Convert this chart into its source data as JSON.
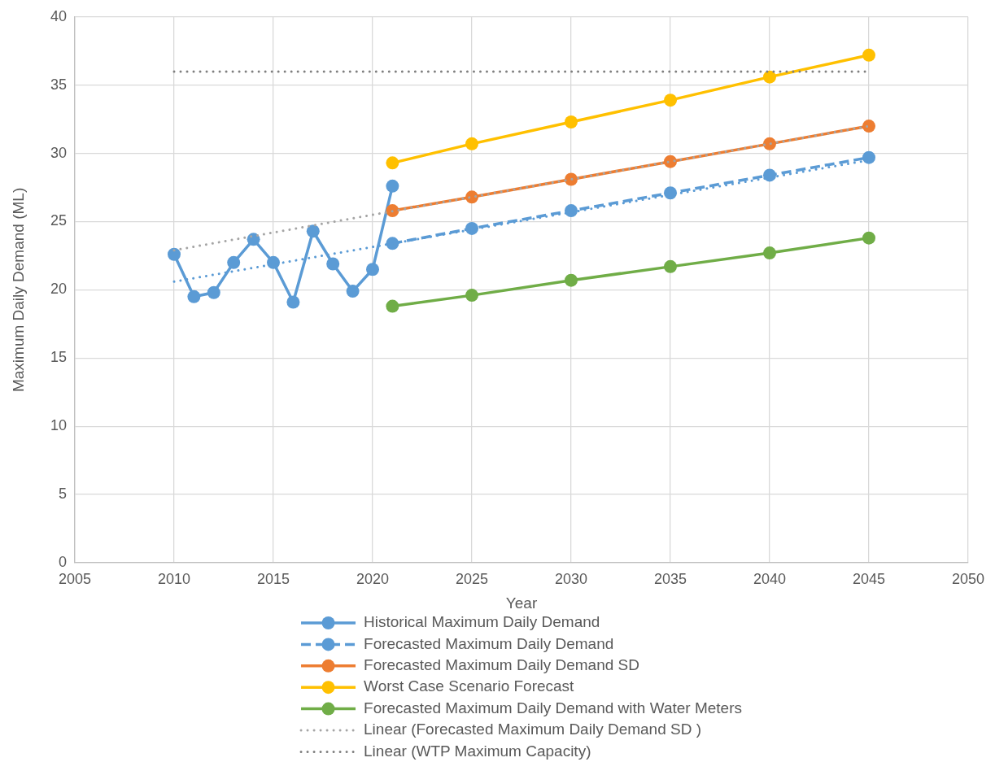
{
  "chart_data": {
    "type": "line",
    "xlabel": "Year",
    "ylabel": "Maximum Daily Demand (ML)",
    "xlim": [
      2005,
      2050
    ],
    "xticks": [
      2005,
      2010,
      2015,
      2020,
      2025,
      2030,
      2035,
      2040,
      2045,
      2050
    ],
    "ylim": [
      0,
      40
    ],
    "yticks": [
      0,
      5,
      10,
      15,
      20,
      25,
      30,
      35,
      40
    ],
    "grid": true,
    "legend": "bottom",
    "marker": "circle",
    "line_style": "solid",
    "series": [
      {
        "name": "Historical Maximum Daily Demand",
        "color": "#5b9bd5",
        "x": [
          2010,
          2011,
          2012,
          2013,
          2014,
          2015,
          2016,
          2017,
          2018,
          2019,
          2020,
          2021
        ],
        "values": [
          22.6,
          19.5,
          19.8,
          22.0,
          23.7,
          22.0,
          19.1,
          24.3,
          21.9,
          19.9,
          21.5,
          27.6
        ]
      },
      {
        "name": "Forecasted Maximum Daily Demand",
        "color": "#5b9bd5",
        "line_style": "dashed",
        "x": [
          2021,
          2025,
          2030,
          2035,
          2040,
          2045
        ],
        "values": [
          23.4,
          24.5,
          25.8,
          27.1,
          28.4,
          29.7
        ]
      },
      {
        "name": "Forecasted Maximum Daily Demand SD",
        "color": "#ed7d31",
        "x": [
          2021,
          2025,
          2030,
          2035,
          2040,
          2045
        ],
        "values": [
          25.8,
          26.8,
          28.1,
          29.4,
          30.7,
          32.0
        ]
      },
      {
        "name": "Worst Case Scenario Forecast",
        "color": "#ffc000",
        "x": [
          2021,
          2025,
          2030,
          2035,
          2040,
          2045
        ],
        "values": [
          29.3,
          30.7,
          32.3,
          33.9,
          35.6,
          37.2
        ]
      },
      {
        "name": "Forecasted Maximum Daily Demand with Water Meters",
        "color": "#70ad47",
        "x": [
          2021,
          2025,
          2030,
          2035,
          2040,
          2045
        ],
        "values": [
          18.8,
          19.6,
          20.7,
          21.7,
          22.7,
          23.8
        ]
      },
      {
        "name": "Linear (Forecasted Maximum Daily Demand SD )",
        "type": "line",
        "color": "#a5a5a5",
        "line_style": "dotted",
        "marker": "none",
        "x": [
          2010,
          2045
        ],
        "values": [
          22.9,
          32.0
        ]
      },
      {
        "name": "Linear (WTP Maximum Capacity)",
        "type": "line",
        "color": "#7f7f7f",
        "line_style": "dotted",
        "marker": "none",
        "x": [
          2010,
          2045
        ],
        "values": [
          36,
          36
        ]
      },
      {
        "type": "line",
        "color": "#5b9bd5",
        "line_style": "dotted",
        "marker": "none",
        "x": [
          2010,
          2045
        ],
        "values": [
          20.6,
          29.5
        ]
      }
    ]
  }
}
